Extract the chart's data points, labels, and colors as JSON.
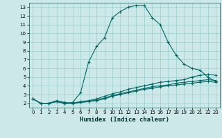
{
  "xlabel": "Humidex (Indice chaleur)",
  "bg_color": "#cce8e8",
  "grid_color": "#99cccc",
  "line_color": "#006666",
  "xlim": [
    -0.5,
    23.5
  ],
  "ylim": [
    1.5,
    13.5
  ],
  "yticks": [
    2,
    3,
    4,
    5,
    6,
    7,
    8,
    9,
    10,
    11,
    12,
    13
  ],
  "xticks": [
    0,
    1,
    2,
    3,
    4,
    5,
    6,
    7,
    8,
    9,
    10,
    11,
    12,
    13,
    14,
    15,
    16,
    17,
    18,
    19,
    20,
    21,
    22,
    23
  ],
  "line1_x": [
    0,
    1,
    2,
    3,
    4,
    5,
    6,
    7,
    8,
    9,
    10,
    11,
    12,
    13,
    14,
    15,
    16,
    17,
    18,
    19,
    20,
    21,
    22,
    23
  ],
  "line1_y": [
    2.5,
    2.0,
    2.0,
    2.2,
    2.0,
    2.1,
    3.2,
    6.7,
    8.5,
    9.5,
    11.8,
    12.5,
    13.0,
    13.2,
    13.2,
    11.8,
    11.0,
    9.0,
    7.5,
    6.5,
    6.0,
    5.8,
    5.0,
    4.5
  ],
  "line2_x": [
    0,
    1,
    2,
    3,
    4,
    5,
    6,
    7,
    8,
    9,
    10,
    11,
    12,
    13,
    14,
    15,
    16,
    17,
    18,
    19,
    20,
    21,
    22,
    23
  ],
  "line2_y": [
    2.5,
    2.0,
    2.0,
    2.2,
    2.0,
    2.0,
    2.2,
    2.3,
    2.5,
    2.8,
    3.1,
    3.3,
    3.6,
    3.8,
    4.0,
    4.2,
    4.4,
    4.5,
    4.6,
    4.7,
    5.0,
    5.2,
    5.3,
    5.2
  ],
  "line3_x": [
    0,
    1,
    2,
    3,
    4,
    5,
    6,
    7,
    8,
    9,
    10,
    11,
    12,
    13,
    14,
    15,
    16,
    17,
    18,
    19,
    20,
    21,
    22,
    23
  ],
  "line3_y": [
    2.5,
    2.0,
    2.0,
    2.2,
    2.0,
    2.0,
    2.1,
    2.2,
    2.4,
    2.6,
    2.9,
    3.1,
    3.3,
    3.5,
    3.7,
    3.9,
    4.0,
    4.1,
    4.3,
    4.4,
    4.5,
    4.6,
    4.7,
    4.6
  ],
  "line4_x": [
    0,
    1,
    2,
    3,
    4,
    5,
    6,
    7,
    8,
    9,
    10,
    11,
    12,
    13,
    14,
    15,
    16,
    17,
    18,
    19,
    20,
    21,
    22,
    23
  ],
  "line4_y": [
    2.5,
    2.0,
    2.0,
    2.3,
    2.1,
    2.0,
    2.1,
    2.2,
    2.3,
    2.5,
    2.8,
    3.0,
    3.2,
    3.4,
    3.6,
    3.7,
    3.9,
    4.0,
    4.1,
    4.2,
    4.3,
    4.4,
    4.5,
    4.4
  ]
}
